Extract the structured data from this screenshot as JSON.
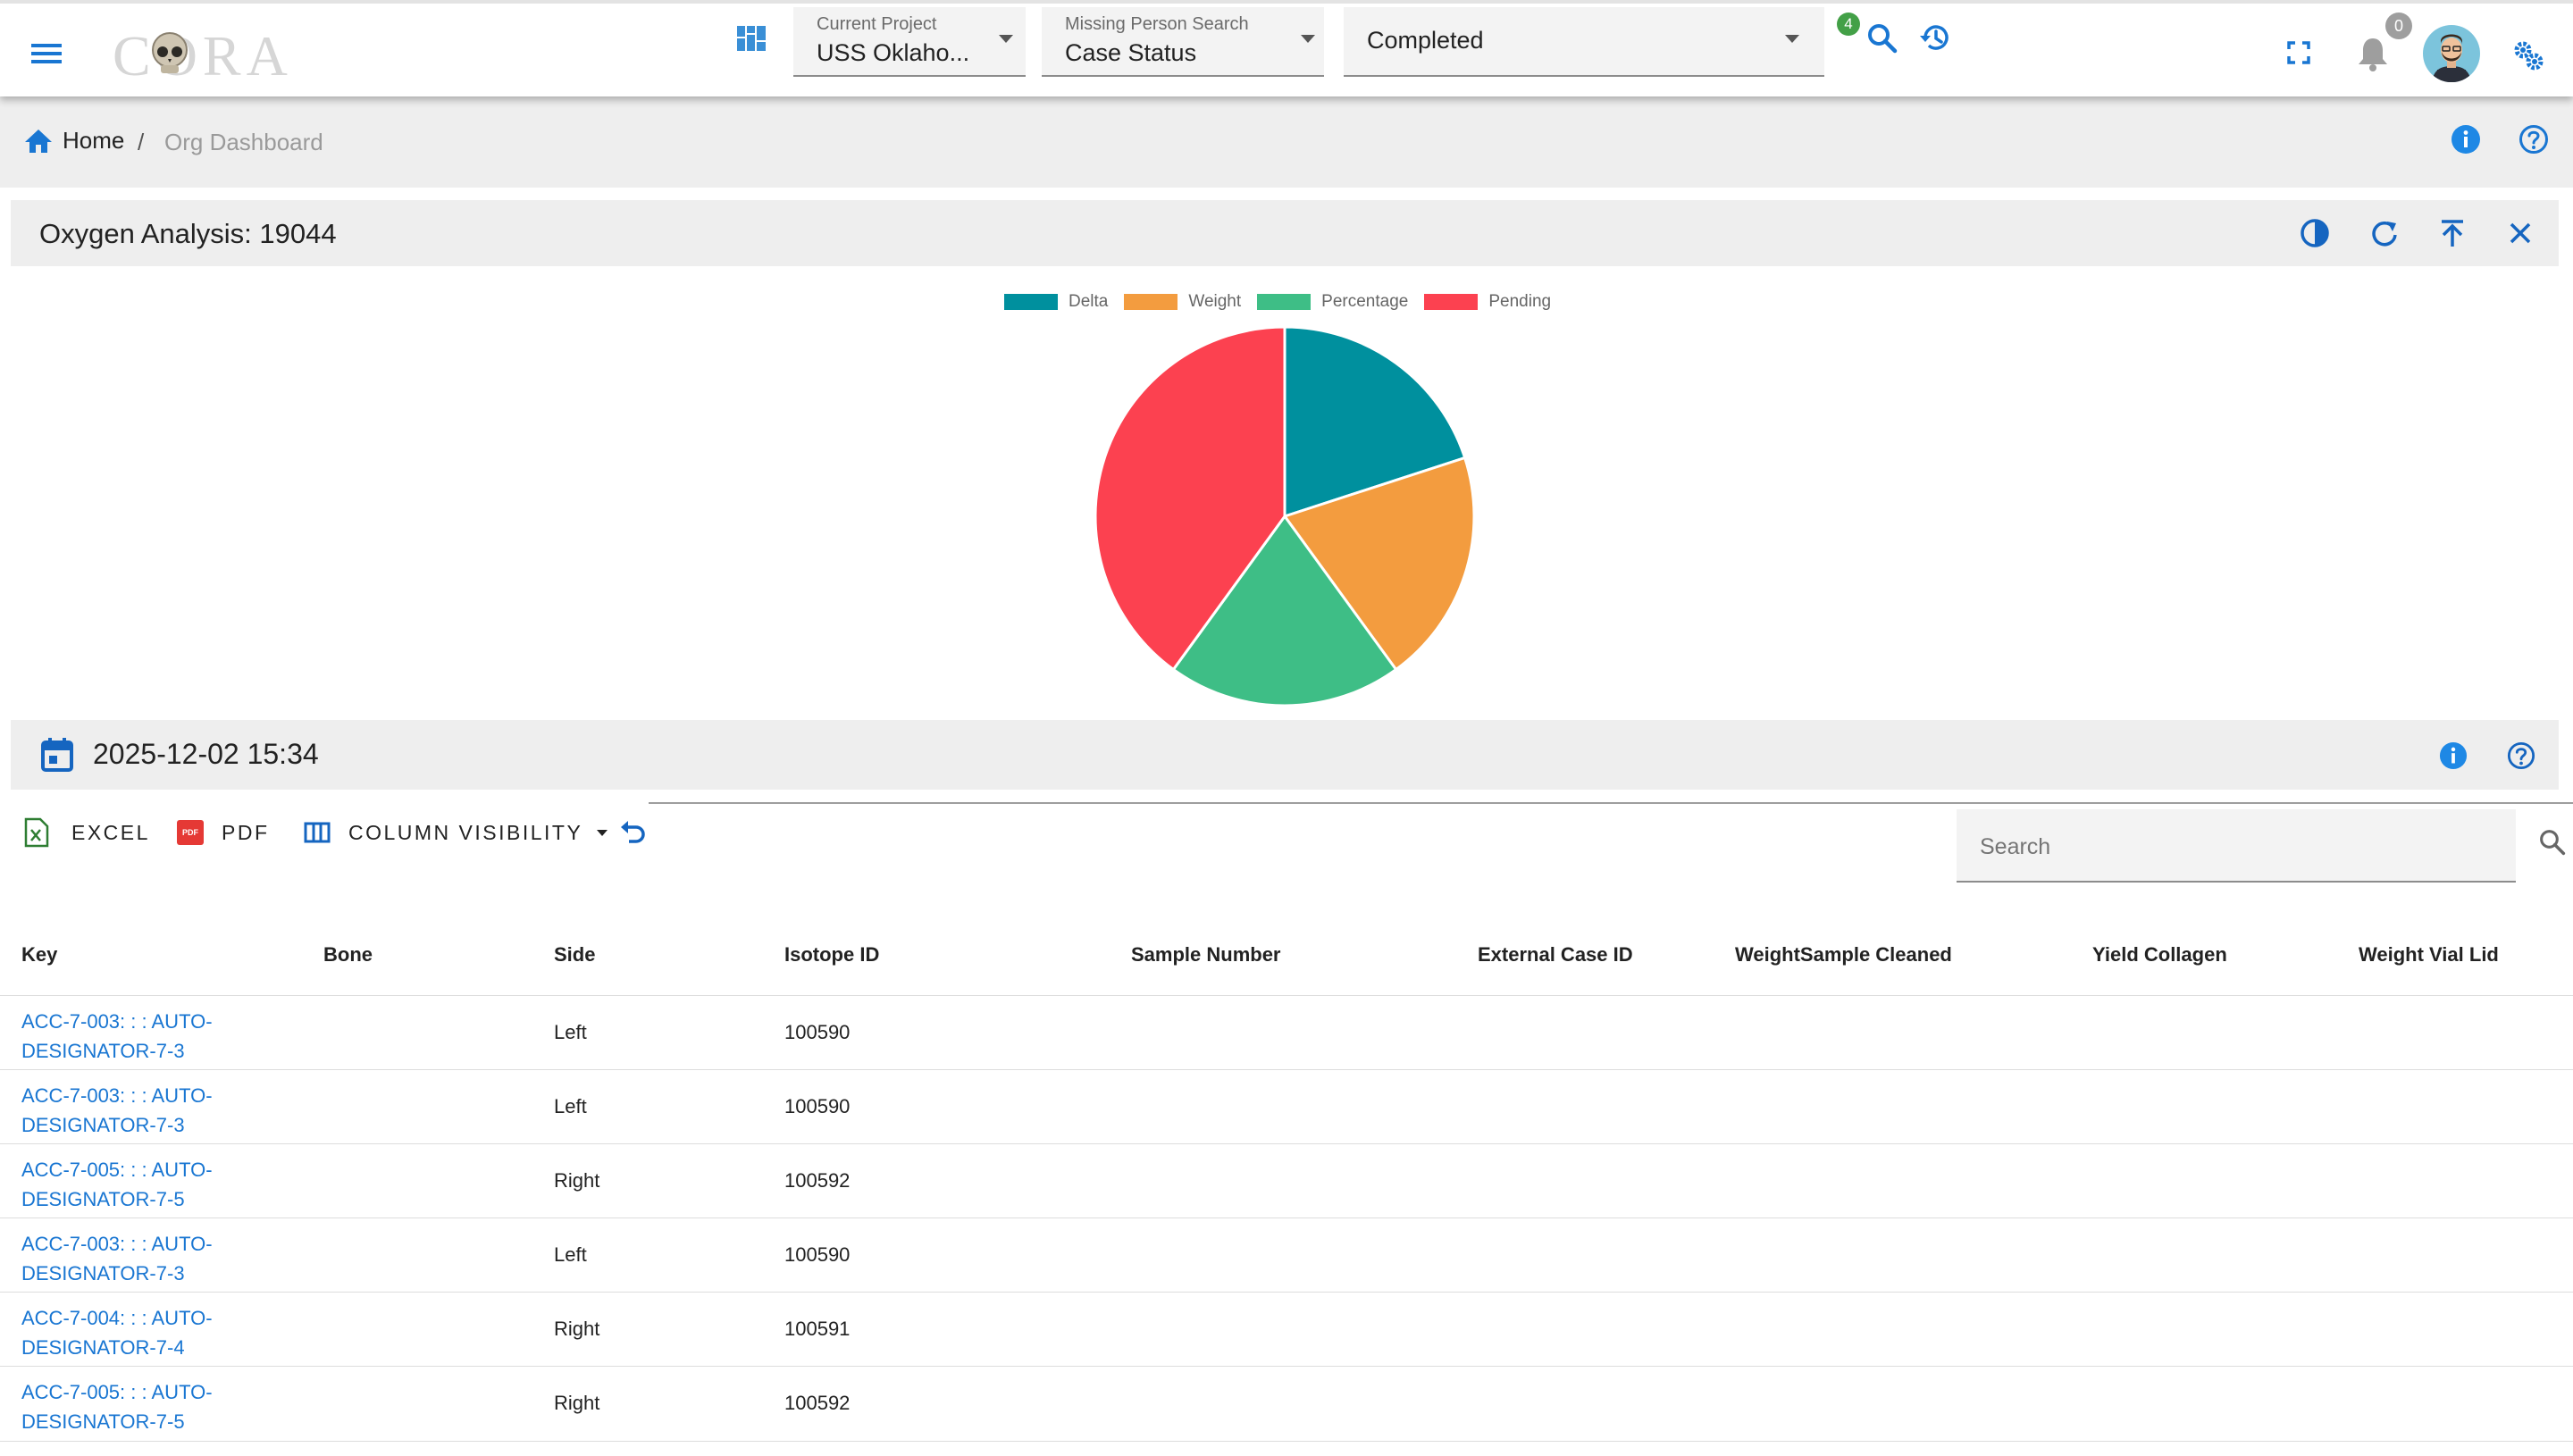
{
  "header": {
    "logo_text": "CORA",
    "project": {
      "label": "Current Project",
      "value": "USS Oklaho..."
    },
    "search_type": {
      "label": "Missing Person Search",
      "value": "Case Status"
    },
    "status": {
      "value": "Completed"
    },
    "search_badge": "4",
    "notification_count": "0"
  },
  "breadcrumb": {
    "home": "Home",
    "separator": "/",
    "current": "Org Dashboard"
  },
  "panel": {
    "title": "Oxygen Analysis: 19044"
  },
  "chart_data": {
    "type": "pie",
    "labels": [
      "Delta",
      "Weight",
      "Percentage",
      "Pending"
    ],
    "values": [
      20,
      20,
      20,
      40
    ],
    "colors": [
      "#00909e",
      "#f39c3f",
      "#3ebe86",
      "#fc4150"
    ],
    "legend_position": "top"
  },
  "date_panel": {
    "value": "2025-12-02 15:34"
  },
  "toolbar": {
    "excel": "EXCEL",
    "pdf": "PDF",
    "pdf_icon_text": "PDF",
    "column_visibility": "COLUMN VISIBILITY",
    "search_placeholder": "Search"
  },
  "table": {
    "headers": [
      "Key",
      "Bone",
      "Side",
      "Isotope ID",
      "Sample Number",
      "External Case ID",
      "WeightSample Cleaned",
      "Yield Collagen",
      "Weight Vial Lid"
    ],
    "rows": [
      {
        "key_line1": "ACC-7-003: : : AUTO-",
        "key_line2": "DESIGNATOR-7-3",
        "bone": "",
        "side": "Left",
        "isotope_id": "100590"
      },
      {
        "key_line1": "ACC-7-003: : : AUTO-",
        "key_line2": "DESIGNATOR-7-3",
        "bone": "",
        "side": "Left",
        "isotope_id": "100590"
      },
      {
        "key_line1": "ACC-7-005: : : AUTO-",
        "key_line2": "DESIGNATOR-7-5",
        "bone": "",
        "side": "Right",
        "isotope_id": "100592"
      },
      {
        "key_line1": "ACC-7-003: : : AUTO-",
        "key_line2": "DESIGNATOR-7-3",
        "bone": "",
        "side": "Left",
        "isotope_id": "100590"
      },
      {
        "key_line1": "ACC-7-004: : : AUTO-",
        "key_line2": "DESIGNATOR-7-4",
        "bone": "",
        "side": "Right",
        "isotope_id": "100591"
      },
      {
        "key_line1": "ACC-7-005: : : AUTO-",
        "key_line2": "DESIGNATOR-7-5",
        "bone": "",
        "side": "Right",
        "isotope_id": "100592"
      }
    ]
  }
}
